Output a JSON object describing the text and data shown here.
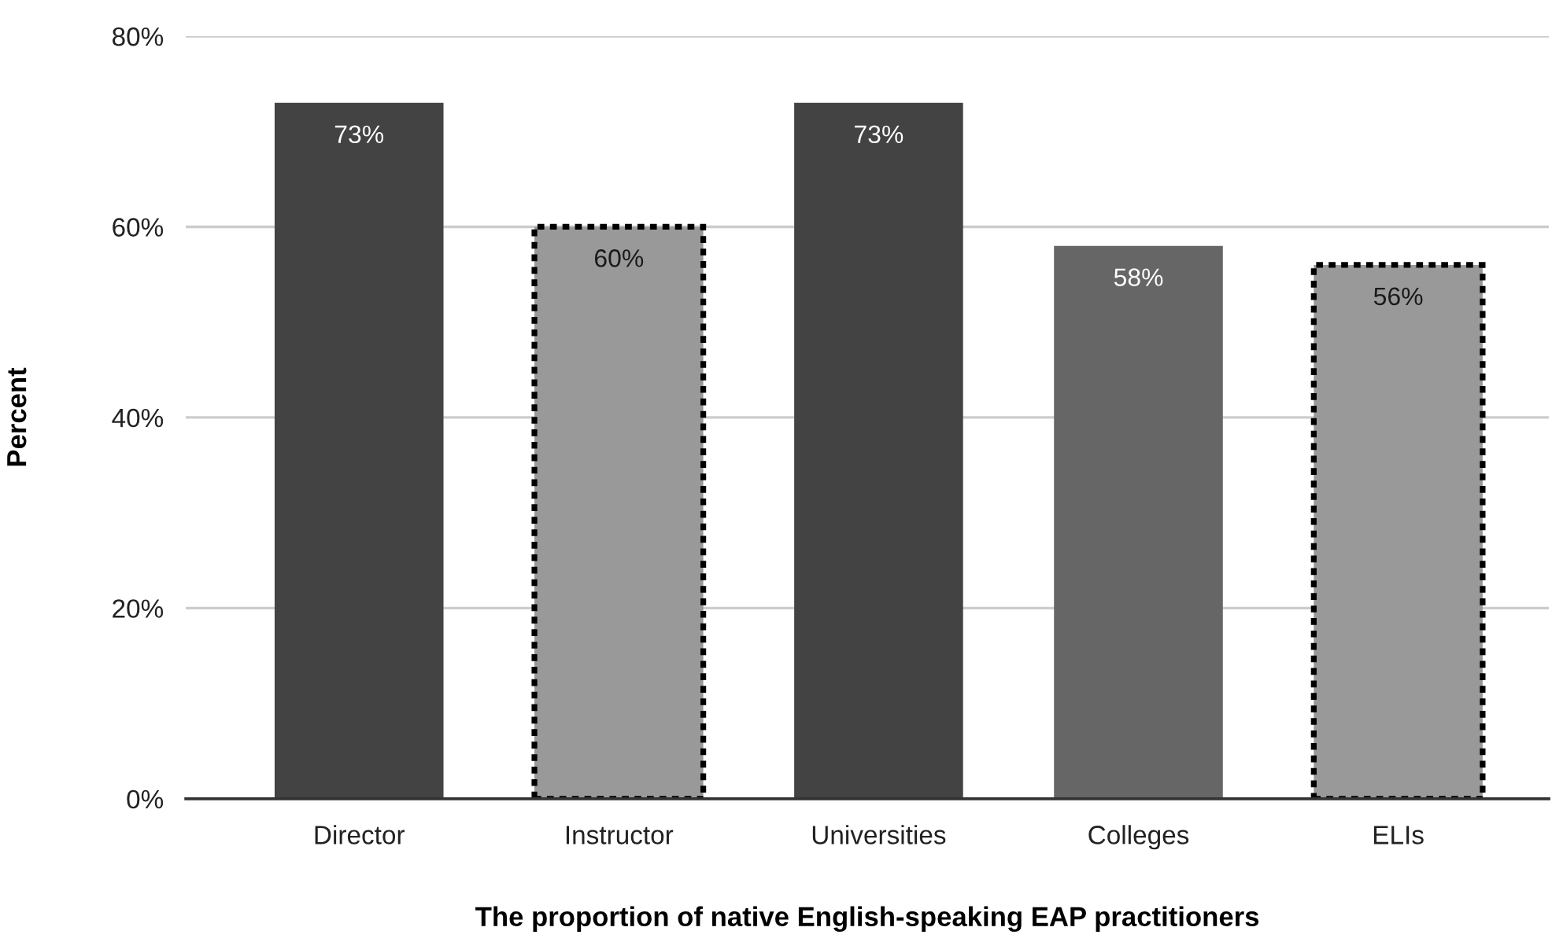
{
  "chart_data": {
    "type": "bar",
    "xlabel": "The proportion of native English-speaking EAP practitioners",
    "ylabel": "Percent",
    "categories": [
      "Director",
      "Instructor",
      "Universities",
      "Colleges",
      "ELIs"
    ],
    "stacked": true,
    "series": [
      {
        "colors": [
          "#434343",
          null,
          "#434343",
          "#666666",
          null
        ],
        "values": [
          73,
          null,
          73,
          58,
          null
        ],
        "value_labels": [
          "73%",
          null,
          "73%",
          "58%",
          null
        ]
      },
      {
        "color": "#999999",
        "line_style": "dotted",
        "values": [
          null,
          60,
          null,
          null,
          56
        ],
        "value_labels": [
          null,
          "60%",
          null,
          null,
          "56%"
        ]
      }
    ],
    "ylim": [
      0,
      80
    ],
    "yticks": [
      {
        "value": 0,
        "label": "0%"
      },
      {
        "value": 20,
        "label": "20%"
      },
      {
        "value": 40,
        "label": "40%"
      },
      {
        "value": 60,
        "label": "60%"
      },
      {
        "value": 80,
        "label": "80%"
      }
    ],
    "grid": "y"
  }
}
